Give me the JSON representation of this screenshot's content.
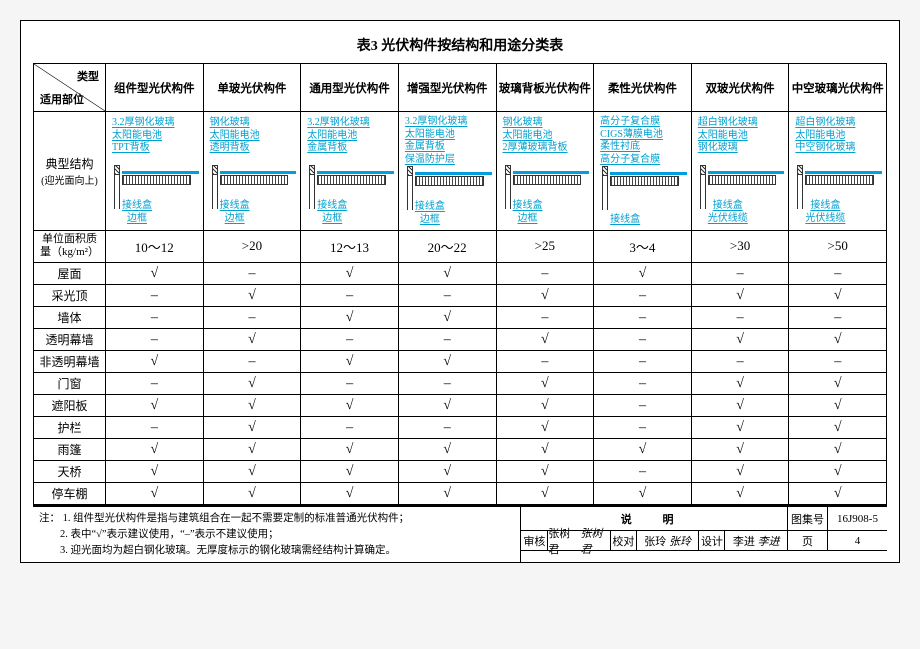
{
  "title": "表3  光伏构件按结构和用途分类表",
  "corner": {
    "col": "类型",
    "row": "适用部位"
  },
  "columns": [
    "组件型光伏构件",
    "单玻光伏构件",
    "通用型光伏构件",
    "增强型光伏构件",
    "玻璃背板光伏构件",
    "柔性光伏构件",
    "双玻光伏构件",
    "中空玻璃光伏构件"
  ],
  "struct_label": "典型结构",
  "struct_sub": "(迎光面向上)",
  "layers": [
    [
      "3.2厚钢化玻璃",
      "太阳能电池",
      "TPT背板"
    ],
    [
      "钢化玻璃",
      "太阳能电池",
      "透明背板"
    ],
    [
      "3.2厚钢化玻璃",
      "太阳能电池",
      "金属背板"
    ],
    [
      "3.2厚钢化玻璃",
      "太阳能电池",
      "金属背板",
      "保温防护层"
    ],
    [
      "钢化玻璃",
      "太阳能电池",
      "2厚薄玻璃背板"
    ],
    [
      "高分子复合膜",
      "CIGS薄膜电池",
      "柔性衬底",
      "高分子复合膜"
    ],
    [
      "超白钢化玻璃",
      "太阳能电池",
      "钢化玻璃"
    ],
    [
      "超白钢化玻璃",
      "太阳能电池",
      "中空钢化玻璃"
    ]
  ],
  "leads": [
    [
      "接线盒",
      "边框"
    ],
    [
      "接线盒",
      "边框"
    ],
    [
      "接线盒",
      "边框"
    ],
    [
      "接线盒",
      "边框"
    ],
    [
      "接线盒",
      "边框"
    ],
    [
      "接线盒"
    ],
    [
      "接线盒",
      "光伏线缆"
    ],
    [
      "接线盒",
      "光伏线缆"
    ]
  ],
  "mass_label_l1": "单位面积质",
  "mass_label_l2": "量（kg/m²）",
  "mass": [
    "10～12",
    ">20",
    "12～13",
    "20～22",
    ">25",
    "3～4",
    ">30",
    ">50"
  ],
  "rows": [
    {
      "label": "屋面",
      "v": [
        "√",
        "–",
        "√",
        "√",
        "–",
        "√",
        "–",
        "–"
      ]
    },
    {
      "label": "采光顶",
      "v": [
        "–",
        "√",
        "–",
        "–",
        "√",
        "–",
        "√",
        "√"
      ]
    },
    {
      "label": "墙体",
      "v": [
        "–",
        "–",
        "√",
        "√",
        "–",
        "–",
        "–",
        "–"
      ]
    },
    {
      "label": "透明幕墙",
      "v": [
        "–",
        "√",
        "–",
        "–",
        "√",
        "–",
        "√",
        "√"
      ]
    },
    {
      "label": "非透明幕墙",
      "v": [
        "√",
        "–",
        "√",
        "√",
        "–",
        "–",
        "–",
        "–"
      ]
    },
    {
      "label": "门窗",
      "v": [
        "–",
        "√",
        "–",
        "–",
        "√",
        "–",
        "√",
        "√"
      ]
    },
    {
      "label": "遮阳板",
      "v": [
        "√",
        "√",
        "√",
        "√",
        "√",
        "–",
        "√",
        "√"
      ]
    },
    {
      "label": "护栏",
      "v": [
        "–",
        "√",
        "–",
        "–",
        "√",
        "–",
        "√",
        "√"
      ]
    },
    {
      "label": "雨篷",
      "v": [
        "√",
        "√",
        "√",
        "√",
        "√",
        "√",
        "√",
        "√"
      ]
    },
    {
      "label": "天桥",
      "v": [
        "√",
        "√",
        "√",
        "√",
        "√",
        "–",
        "√",
        "√"
      ]
    },
    {
      "label": "停车棚",
      "v": [
        "√",
        "√",
        "√",
        "√",
        "√",
        "√",
        "√",
        "√"
      ]
    }
  ],
  "notes_label": "注：",
  "notes": [
    "1. 组件型光伏构件是指与建筑组合在一起不需要定制的标准普通光伏构件；",
    "2. 表中“√”表示建议使用，“–”表示不建议使用；",
    "3. 迎光面均为超白钢化玻璃。无厚度标示的钢化玻璃需经结构计算确定。"
  ],
  "tb": {
    "big": "说 明",
    "set_lbl": "图集号",
    "set": "16J908-5",
    "chk_lbl": "审核",
    "chk": "张树君",
    "chk_sig": "张树君",
    "rev_lbl": "校对",
    "rev": "张玲",
    "rev_sig": "张玲",
    "des_lbl": "设计",
    "des": "李进",
    "des_sig": "李进",
    "page_lbl": "页",
    "page": "4"
  },
  "colors": {
    "blue": "#00a0e0"
  }
}
